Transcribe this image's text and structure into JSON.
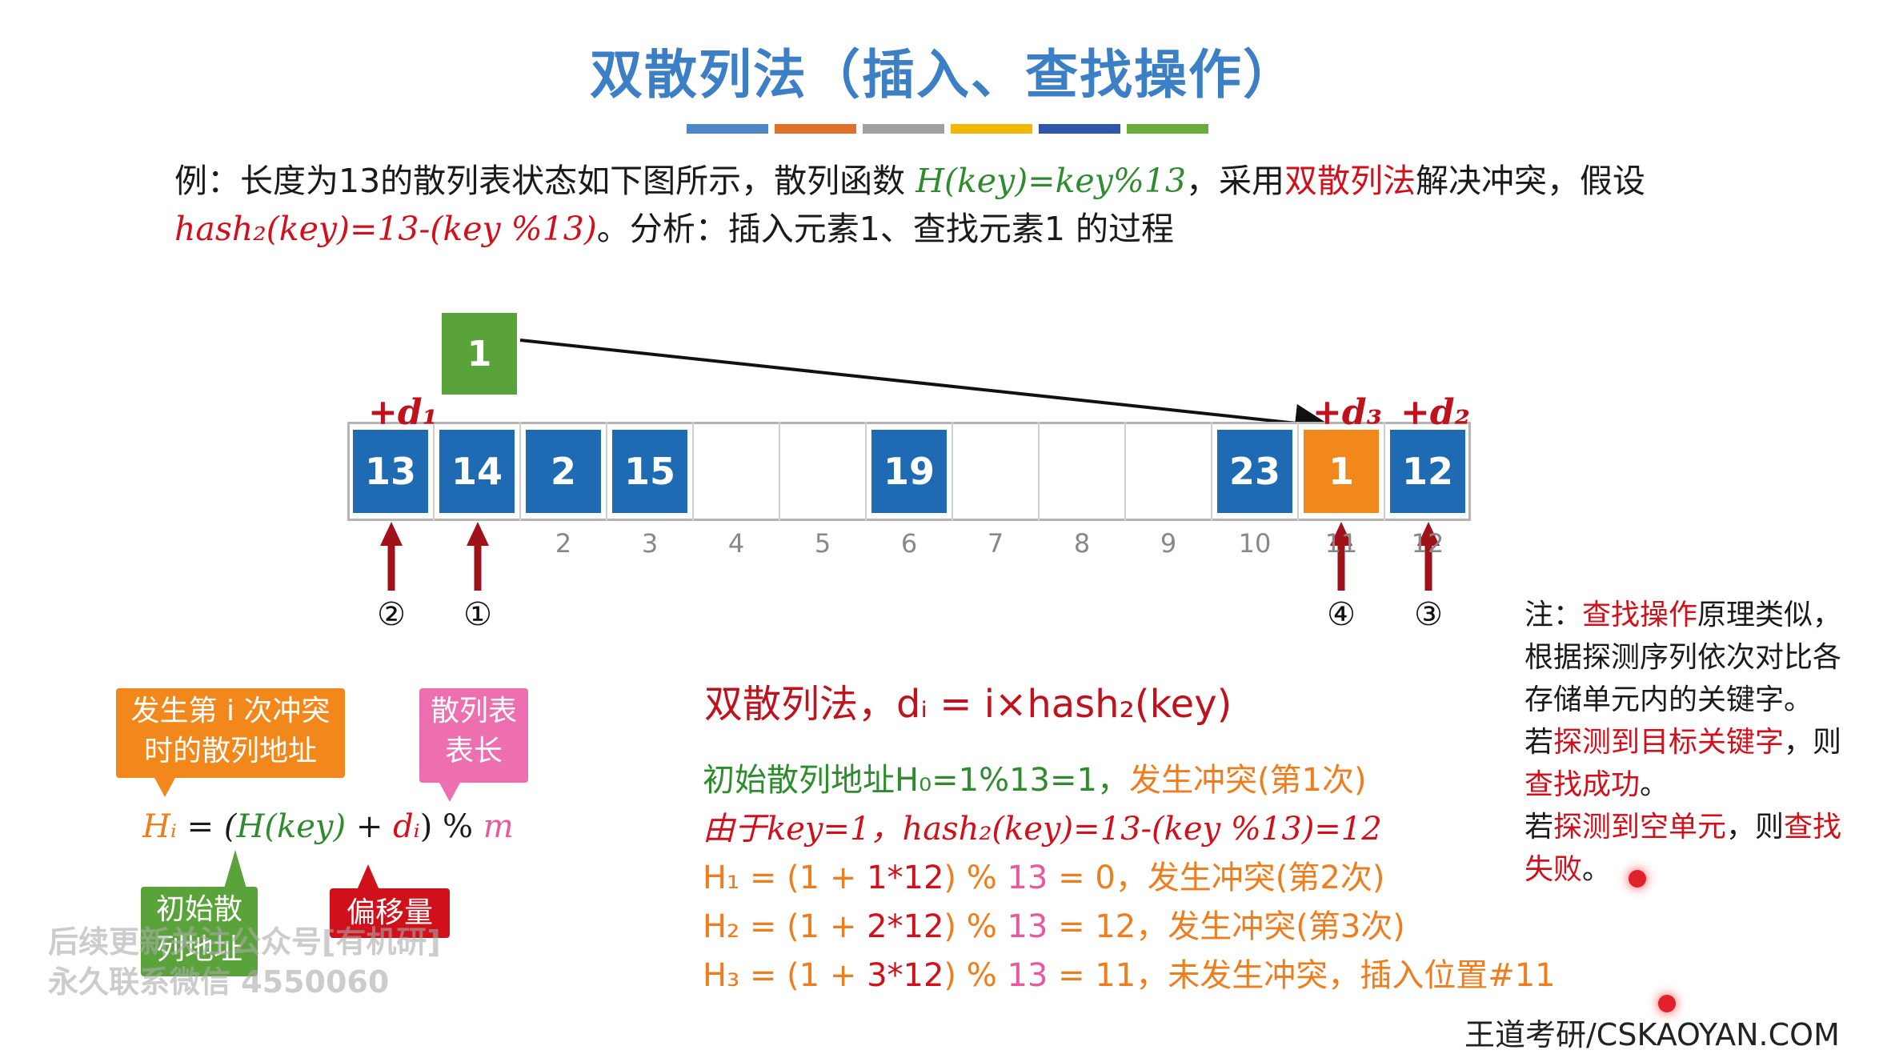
{
  "title": "双散列法（插入、查找操作）",
  "stripe_colors": [
    "#4f86c6",
    "#e0702a",
    "#a0a0a0",
    "#f0b800",
    "#3055a8",
    "#6aac3c"
  ],
  "intro": {
    "p1": "例：长度为13的散列表状态如下图所示，散列函数 ",
    "hash_fn": "H(key)=key%13",
    "p2": "，采用",
    "method": "双散列法",
    "p3": "解决冲突，假设",
    "hash2": "hash₂(key)=13-(key %13)",
    "p4": "。分析：插入元素1、查找元素1 的过程"
  },
  "new_element": "1",
  "table": {
    "cells": [
      "13",
      "14",
      "2",
      "15",
      "",
      "",
      "19",
      "",
      "",
      "",
      "23",
      "1",
      "12"
    ],
    "indices": [
      "",
      "",
      "2",
      "3",
      "4",
      "5",
      "6",
      "7",
      "8",
      "9",
      "10",
      "11",
      "12"
    ],
    "offset_labels": [
      "+d₁",
      "+d₃",
      "+d₂"
    ],
    "probe_marks": [
      "②",
      "①",
      "④",
      "③"
    ]
  },
  "tags": {
    "collision_addr": "发生第 i 次冲突时的散列地址",
    "table_len": "散列表表长",
    "initial_addr": "初始散列地址",
    "offset": "偏移量"
  },
  "formula": {
    "lhs": "Hᵢ",
    "eq": " = (",
    "hkey": "H(key)",
    "plus": " + ",
    "di": "dᵢ",
    "mod": ") % ",
    "m": "m"
  },
  "method_line": "双散列法，dᵢ = i×hash₂(key)",
  "steps": {
    "s1a": "初始散列地址H₀=1%13=1，",
    "s1b": "发生冲突(第1次)",
    "s2": "由于key=1，hash₂(key)=13-(key %13)=12",
    "s3a": "H₁ = (1 + ",
    "s3b": "1*12",
    "s3c": ") % ",
    "s3d": "13",
    "s3e": " = 0，",
    "s3f": "发生冲突(第2次)",
    "s4a": "H₂ = (1 + ",
    "s4b": "2*12",
    "s4c": ") % ",
    "s4d": "13",
    "s4e": " = 12，",
    "s4f": "发生冲突(第3次)",
    "s5a": "H₃ = (1 + ",
    "s5b": "3*12",
    "s5c": ") % ",
    "s5d": "13",
    "s5e": " = 11，",
    "s5f": "未发生冲突，插入位置#11"
  },
  "note": {
    "n1": "注：",
    "n2": "查找操作",
    "n3": "原理类似，根据探测序列依次对比各存储单元内的关键字。",
    "n4": "若",
    "n5": "探测到目标关键字",
    "n6": "，则",
    "n7": "查找成功",
    "n8": "。",
    "n9": "若",
    "n10": "探测到空单元",
    "n11": "，则",
    "n12": "查找失败",
    "n13": "。"
  },
  "watermark": {
    "l1": "后续更新关注公众号[有机研]",
    "l2": "永久联系微信 4550060"
  },
  "brand": "王道考研/CSKAOYAN.COM"
}
